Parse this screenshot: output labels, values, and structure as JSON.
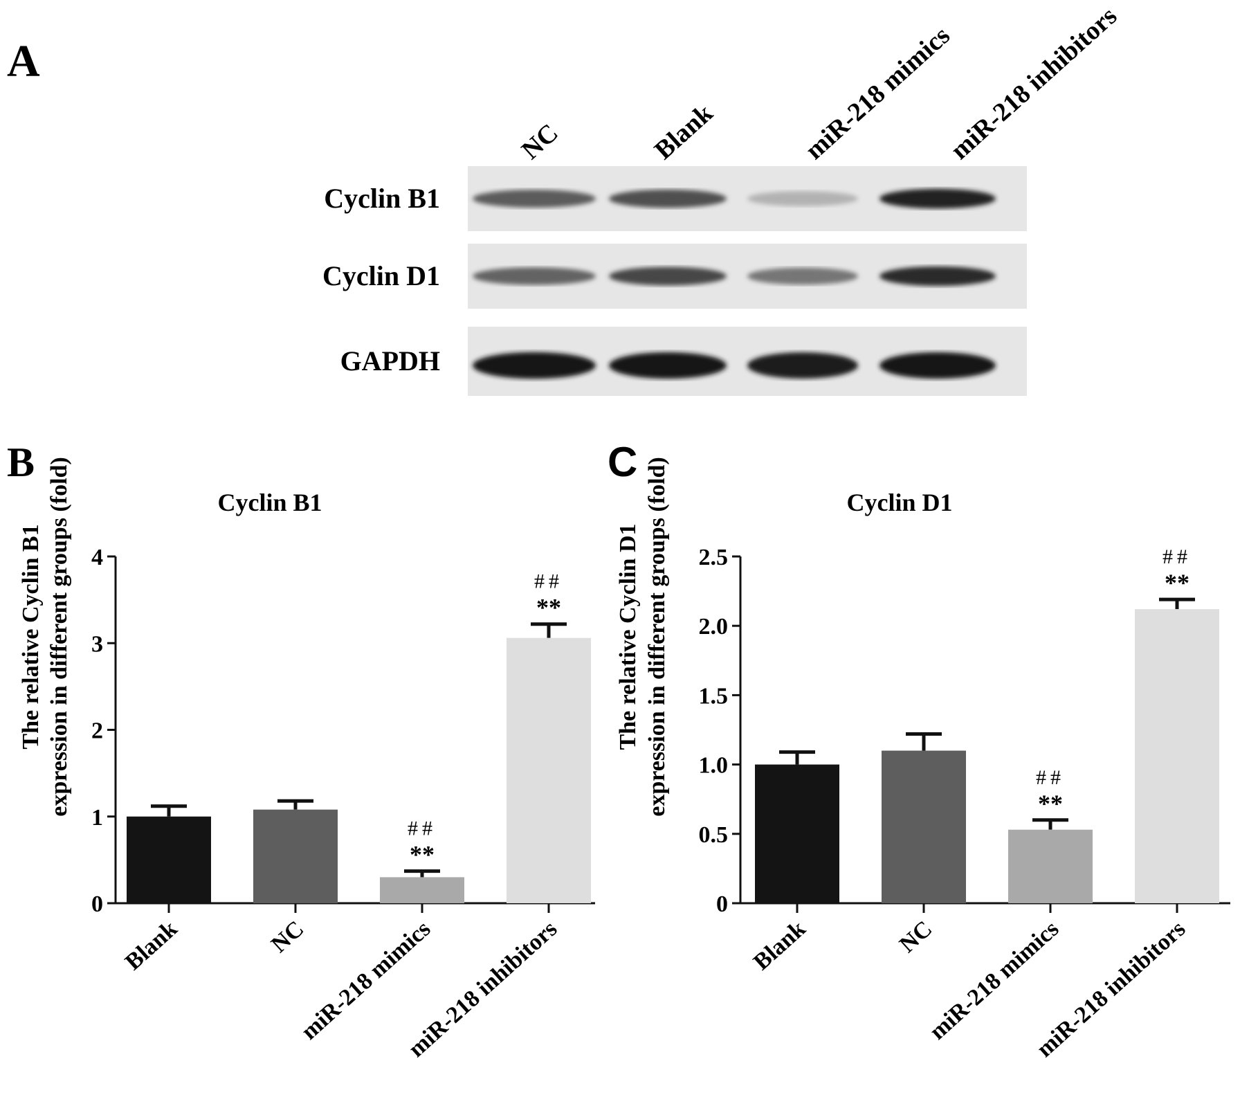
{
  "panel_a": {
    "label": "A",
    "lanes": [
      "NC",
      "Blank",
      "miR-218 mimics",
      "miR-218 inhibitors"
    ],
    "rows": [
      {
        "name": "Cyclin B1",
        "intensity": [
          0.62,
          0.68,
          0.22,
          0.88
        ]
      },
      {
        "name": "Cyclin D1",
        "intensity": [
          0.58,
          0.72,
          0.5,
          0.85
        ]
      },
      {
        "name": "GAPDH",
        "intensity": [
          0.95,
          0.93,
          0.92,
          0.93
        ]
      }
    ]
  },
  "chart_data": [
    {
      "panel_label": "B",
      "type": "bar",
      "title": "Cyclin B1",
      "ylabel": [
        "The relative Cyclin B1",
        "expression in different groups (fold)"
      ],
      "categories": [
        "Blank",
        "NC",
        "miR-218 mimics",
        "miR-218 inhibitors"
      ],
      "values": [
        1.0,
        1.08,
        0.3,
        3.06
      ],
      "errors": [
        0.12,
        0.1,
        0.07,
        0.16
      ],
      "annotations": [
        [
          "",
          ""
        ],
        [
          "",
          ""
        ],
        [
          "##",
          "**"
        ],
        [
          "##",
          "**"
        ]
      ],
      "bar_colors": [
        "#141414",
        "#5e5e5e",
        "#a9a9a9",
        "#dedede"
      ],
      "ylim": [
        0,
        4
      ],
      "yticks": [
        "0",
        "1",
        "2",
        "3",
        "4"
      ]
    },
    {
      "panel_label": "C",
      "type": "bar",
      "title": "Cyclin D1",
      "ylabel": [
        "The relative Cyclin D1",
        "expression in different groups (fold)"
      ],
      "categories": [
        "Blank",
        "NC",
        "miR-218 mimics",
        "miR-218 inhibitors"
      ],
      "values": [
        1.0,
        1.1,
        0.53,
        2.12
      ],
      "errors": [
        0.09,
        0.12,
        0.07,
        0.07
      ],
      "annotations": [
        [
          "",
          ""
        ],
        [
          "",
          ""
        ],
        [
          "##",
          "**"
        ],
        [
          "##",
          "**"
        ]
      ],
      "bar_colors": [
        "#141414",
        "#5e5e5e",
        "#a9a9a9",
        "#dedede"
      ],
      "ylim": [
        0,
        2.5
      ],
      "yticks": [
        "0",
        "0.5",
        "1.0",
        "1.5",
        "2.0",
        "2.5"
      ]
    }
  ]
}
